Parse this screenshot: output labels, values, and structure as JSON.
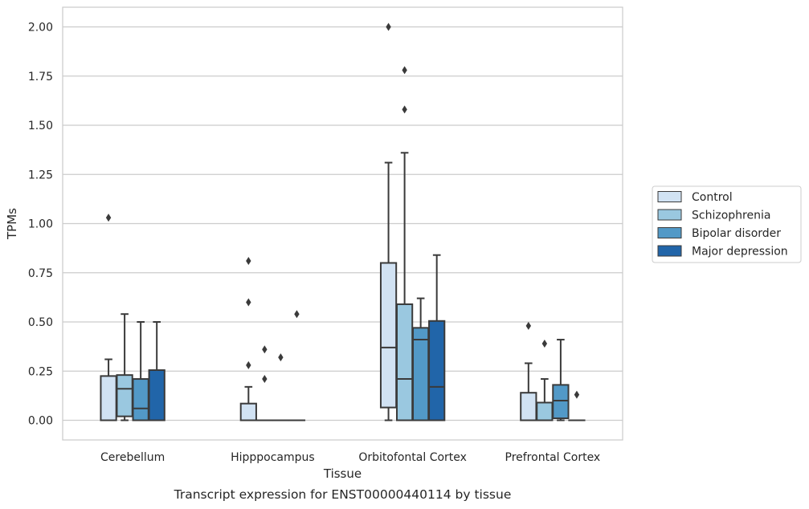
{
  "chart_data": {
    "type": "box",
    "caption": "Transcript expression for ENST00000440114 by tissue",
    "xlabel": "Tissue",
    "ylabel": "TPMs",
    "ylim": [
      -0.1,
      2.1
    ],
    "yticks": [
      "0.00",
      "0.25",
      "0.50",
      "0.75",
      "1.00",
      "1.25",
      "1.50",
      "1.75",
      "2.00"
    ],
    "grid": true,
    "legend_position": "right",
    "categories": [
      "Cerebellum",
      "Hipppocampus",
      "Orbitofontal Cortex",
      "Prefrontal Cortex"
    ],
    "series": [
      {
        "name": "Control",
        "color": "#d1e2f3",
        "boxes": [
          {
            "whislo": 0.0,
            "q1": 0.0,
            "med": 0.0,
            "q3": 0.225,
            "whishi": 0.31,
            "fliers": [
              1.03
            ]
          },
          {
            "whislo": 0.0,
            "q1": 0.0,
            "med": 0.0,
            "q3": 0.085,
            "whishi": 0.17,
            "fliers": [
              0.28,
              0.6,
              0.81
            ]
          },
          {
            "whislo": 0.0,
            "q1": 0.065,
            "med": 0.37,
            "q3": 0.8,
            "whishi": 1.31,
            "fliers": [
              2.0
            ]
          },
          {
            "whislo": 0.0,
            "q1": 0.0,
            "med": 0.0,
            "q3": 0.14,
            "whishi": 0.29,
            "fliers": [
              0.48
            ]
          }
        ]
      },
      {
        "name": "Schizophrenia",
        "color": "#9ac8e0",
        "boxes": [
          {
            "whislo": 0.0,
            "q1": 0.02,
            "med": 0.16,
            "q3": 0.23,
            "whishi": 0.54,
            "fliers": []
          },
          {
            "whislo": 0.0,
            "q1": 0.0,
            "med": 0.0,
            "q3": 0.0,
            "whishi": 0.0,
            "fliers": [
              0.21,
              0.36
            ]
          },
          {
            "whislo": 0.0,
            "q1": 0.0,
            "med": 0.21,
            "q3": 0.59,
            "whishi": 1.36,
            "fliers": [
              1.58,
              1.78
            ]
          },
          {
            "whislo": 0.0,
            "q1": 0.0,
            "med": 0.0,
            "q3": 0.09,
            "whishi": 0.21,
            "fliers": [
              0.39
            ]
          }
        ]
      },
      {
        "name": "Bipolar disorder",
        "color": "#5299c7",
        "boxes": [
          {
            "whislo": 0.0,
            "q1": 0.0,
            "med": 0.06,
            "q3": 0.21,
            "whishi": 0.5,
            "fliers": []
          },
          {
            "whislo": 0.0,
            "q1": 0.0,
            "med": 0.0,
            "q3": 0.0,
            "whishi": 0.0,
            "fliers": [
              0.32
            ]
          },
          {
            "whislo": 0.0,
            "q1": 0.0,
            "med": 0.41,
            "q3": 0.47,
            "whishi": 0.62,
            "fliers": []
          },
          {
            "whislo": 0.0,
            "q1": 0.01,
            "med": 0.1,
            "q3": 0.18,
            "whishi": 0.41,
            "fliers": []
          }
        ]
      },
      {
        "name": "Major depression",
        "color": "#2165a9",
        "boxes": [
          {
            "whislo": 0.0,
            "q1": 0.0,
            "med": 0.0,
            "q3": 0.255,
            "whishi": 0.5,
            "fliers": []
          },
          {
            "whislo": 0.0,
            "q1": 0.0,
            "med": 0.0,
            "q3": 0.0,
            "whishi": 0.0,
            "fliers": [
              0.54
            ]
          },
          {
            "whislo": 0.0,
            "q1": 0.0,
            "med": 0.17,
            "q3": 0.505,
            "whishi": 0.84,
            "fliers": []
          },
          {
            "whislo": 0.0,
            "q1": 0.0,
            "med": 0.0,
            "q3": 0.0,
            "whishi": 0.0,
            "fliers": [
              0.13
            ]
          }
        ]
      }
    ]
  }
}
